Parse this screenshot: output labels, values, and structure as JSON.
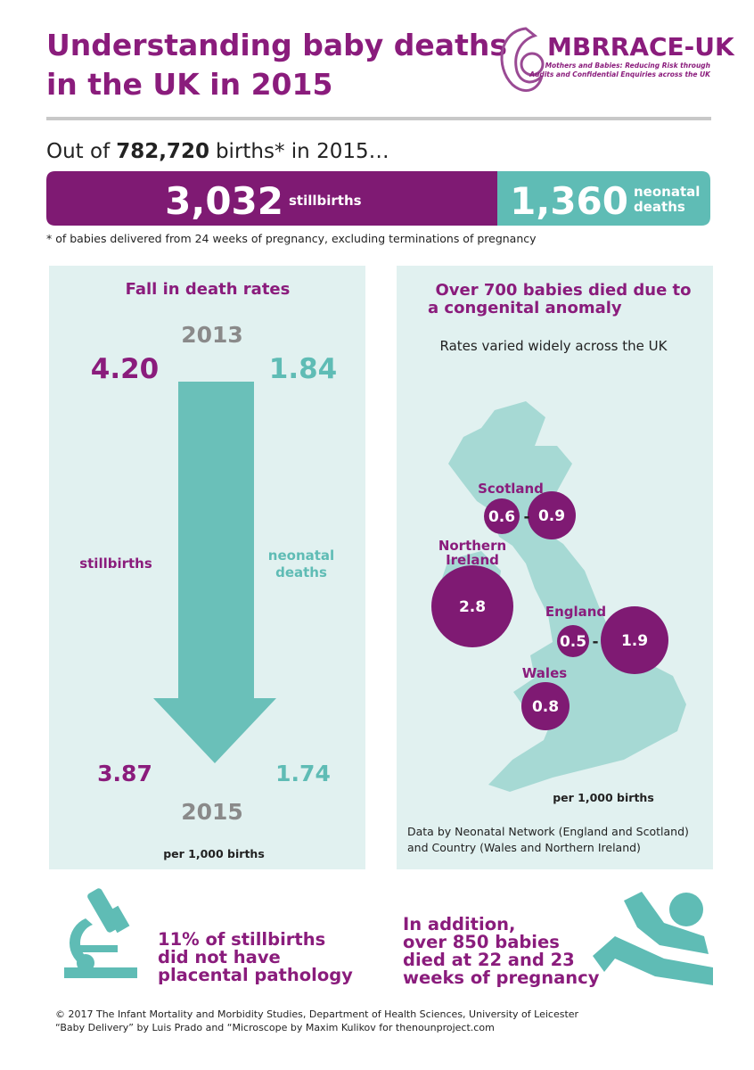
{
  "header": {
    "title_line1": "Understanding baby deaths",
    "title_line2": "in the UK in 2015",
    "logo_name": "MBRRACE-UK",
    "logo_tagline_line1": "Mothers and Babies: Reducing Risk through",
    "logo_tagline_line2": "Audits and Confidential Enquiries across the UK"
  },
  "summary": {
    "intro_prefix": "Out of",
    "births": "782,720",
    "intro_suffix": "births* in 2015…",
    "stillbirths_count": "3,032",
    "stillbirths_label": "stillbirths",
    "neonatal_count": "1,360",
    "neonatal_label_line1": "neonatal",
    "neonatal_label_line2": "deaths",
    "footnote": "* of babies delivered from 24 weeks of pregnancy, excluding terminations of pregnancy"
  },
  "fall_panel": {
    "title": "Fall in death rates",
    "year_start": "2013",
    "stillbirths_start": "4.20",
    "neonatal_start": "1.84",
    "stillbirths_label": "stillbirths",
    "neonatal_label_line1": "neonatal",
    "neonatal_label_line2": "deaths",
    "stillbirths_end": "3.87",
    "neonatal_end": "1.74",
    "year_end": "2015",
    "unit": "per 1,000 births"
  },
  "anomaly_panel": {
    "title_line1": "Over 700 babies died due to",
    "title_line2": "a congenital anomaly",
    "subtitle": "Rates varied widely across the UK",
    "regions": [
      {
        "name": "Scotland",
        "low": "0.6",
        "separator": "-",
        "high": "0.9"
      },
      {
        "name_line1": "Northern",
        "name_line2": "Ireland",
        "value": "2.8"
      },
      {
        "name": "England",
        "low": "0.5",
        "separator": "-",
        "high": "1.9"
      },
      {
        "name": "Wales",
        "value": "0.8"
      }
    ],
    "unit": "per 1,000 births",
    "note_line1": "Data by Neonatal Network (England and Scotland)",
    "note_line2": "and Country (Wales and Northern Ireland)"
  },
  "facts": [
    {
      "lines": [
        "11% of stillbirths",
        "did not have",
        "placental pathology"
      ]
    },
    {
      "lines": [
        "In addition,",
        "over 850 babies",
        "died at 22 and 23",
        "weeks of pregnancy"
      ]
    }
  ],
  "credits": [
    "© 2017 The Infant Mortality and Morbidity Studies, Department of Health Sciences, University of Leicester",
    "“Baby Delivery” by Luis Prado and “Microscope by Maxim Kulikov for thenounproject.com"
  ]
}
